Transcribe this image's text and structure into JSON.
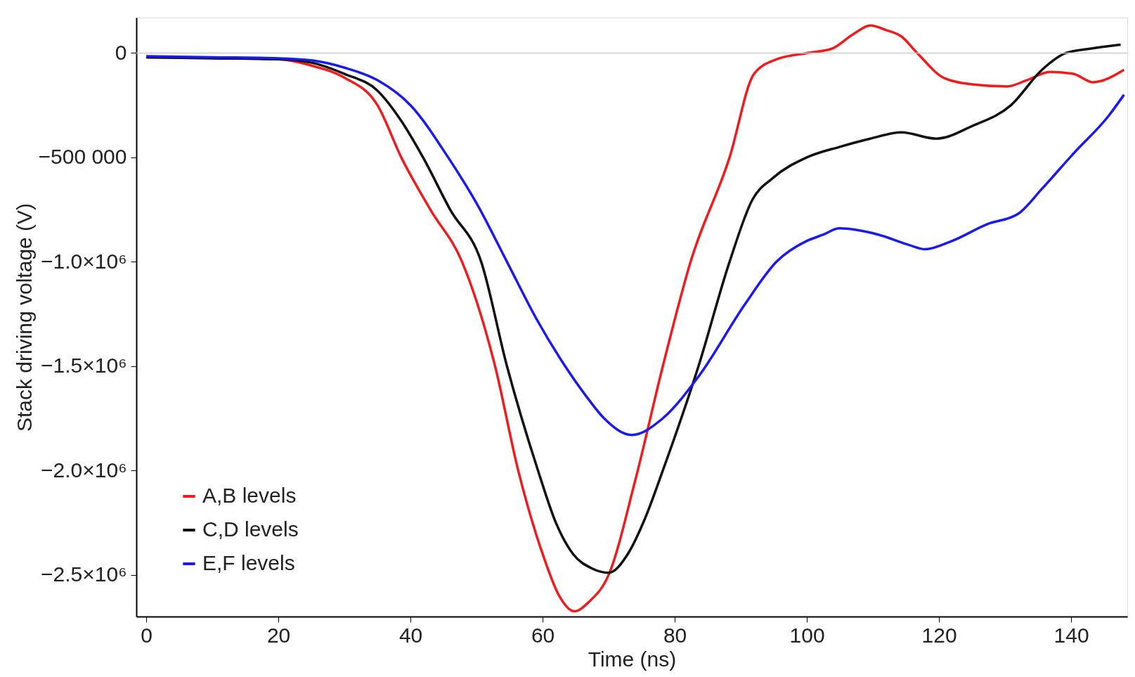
{
  "chart_data": {
    "type": "line",
    "xlabel": "Time (ns)",
    "ylabel": "Stack driving voltage (V)",
    "xlim": [
      -1.5,
      148.5
    ],
    "xticks": [
      0,
      20,
      40,
      60,
      80,
      100,
      120,
      140
    ],
    "ylim": [
      -2700000,
      170000
    ],
    "yticks": [
      {
        "value": 0,
        "label": "0"
      },
      {
        "value": -500000,
        "label": "−500 000"
      },
      {
        "value": -1000000,
        "label": "−1.0×10⁶"
      },
      {
        "value": -1500000,
        "label": "−1.5×10⁶"
      },
      {
        "value": -2000000,
        "label": "−2.0×10⁶"
      },
      {
        "value": -2500000,
        "label": "−2.5×10⁶"
      }
    ],
    "grid": false,
    "legend": "bottom left",
    "line_style": "solid",
    "marker": "none",
    "ref_lines": [
      {
        "axis": "y",
        "value": 0,
        "color": "#cccccc"
      }
    ],
    "series": [
      {
        "name": "A,B levels",
        "color": "#ee1c1c",
        "x": [
          0,
          20,
          25,
          30,
          35,
          38.6,
          43,
          47.8,
          52.8,
          56.3,
          60,
          62.5,
          64.8,
          67,
          70,
          74,
          78.2,
          82.4,
          88.3,
          92,
          95.4,
          100,
          103.7,
          107,
          109.6,
          112,
          114.3,
          116.7,
          120.8,
          125,
          130.3,
          133.3,
          136.8,
          140.4,
          143.3,
          148
        ],
        "values": [
          -20000,
          -30000,
          -60000,
          -118000,
          -250000,
          -500000,
          -750000,
          -1000000,
          -1500000,
          -2000000,
          -2400000,
          -2600000,
          -2675000,
          -2630000,
          -2500000,
          -2050000,
          -1500000,
          -1000000,
          -500000,
          -100000,
          -30000,
          0,
          20000,
          90000,
          132000,
          110000,
          80000,
          0,
          -120000,
          -150000,
          -160000,
          -130000,
          -90000,
          -100000,
          -140000,
          -80000
        ]
      },
      {
        "name": "C,D levels",
        "color": "#111111",
        "x": [
          0,
          10,
          20,
          25,
          30,
          35,
          38.5,
          41.9,
          46,
          50.7,
          54.6,
          59.3,
          62,
          64.6,
          67.5,
          70,
          72.9,
          75.5,
          78.2,
          83.6,
          88.3,
          91.8,
          94.8,
          100,
          104.9,
          109.6,
          114.3,
          119.6,
          125,
          130.9,
          135.6,
          139.2,
          142.7,
          147.5
        ],
        "values": [
          -20000,
          -25000,
          -30000,
          -46000,
          -100000,
          -180000,
          -320000,
          -500000,
          -750000,
          -1000000,
          -1500000,
          -2000000,
          -2250000,
          -2400000,
          -2470000,
          -2490000,
          -2400000,
          -2230000,
          -2000000,
          -1500000,
          -1000000,
          -700000,
          -600000,
          -500000,
          -450000,
          -410000,
          -380000,
          -410000,
          -350000,
          -250000,
          -80000,
          0,
          20000,
          40000
        ]
      },
      {
        "name": "E,F levels",
        "color": "#1a1aee",
        "x": [
          0,
          10,
          20,
          25,
          30,
          35,
          40,
          45.7,
          50,
          54.6,
          59,
          63.4,
          66.5,
          69.3,
          73.5,
          78.2,
          83.6,
          90.7,
          95.4,
          100,
          102.5,
          104.9,
          110.8,
          115.5,
          117.9,
          122,
          127.3,
          132,
          135.6,
          140.4,
          145.7,
          148
        ],
        "values": [
          -15000,
          -20000,
          -25000,
          -35000,
          -70000,
          -130000,
          -250000,
          -500000,
          -720000,
          -1000000,
          -1270000,
          -1500000,
          -1640000,
          -1750000,
          -1830000,
          -1750000,
          -1550000,
          -1200000,
          -1000000,
          -900000,
          -870000,
          -840000,
          -870000,
          -920000,
          -940000,
          -900000,
          -820000,
          -770000,
          -650000,
          -480000,
          -300000,
          -200000
        ]
      }
    ]
  }
}
